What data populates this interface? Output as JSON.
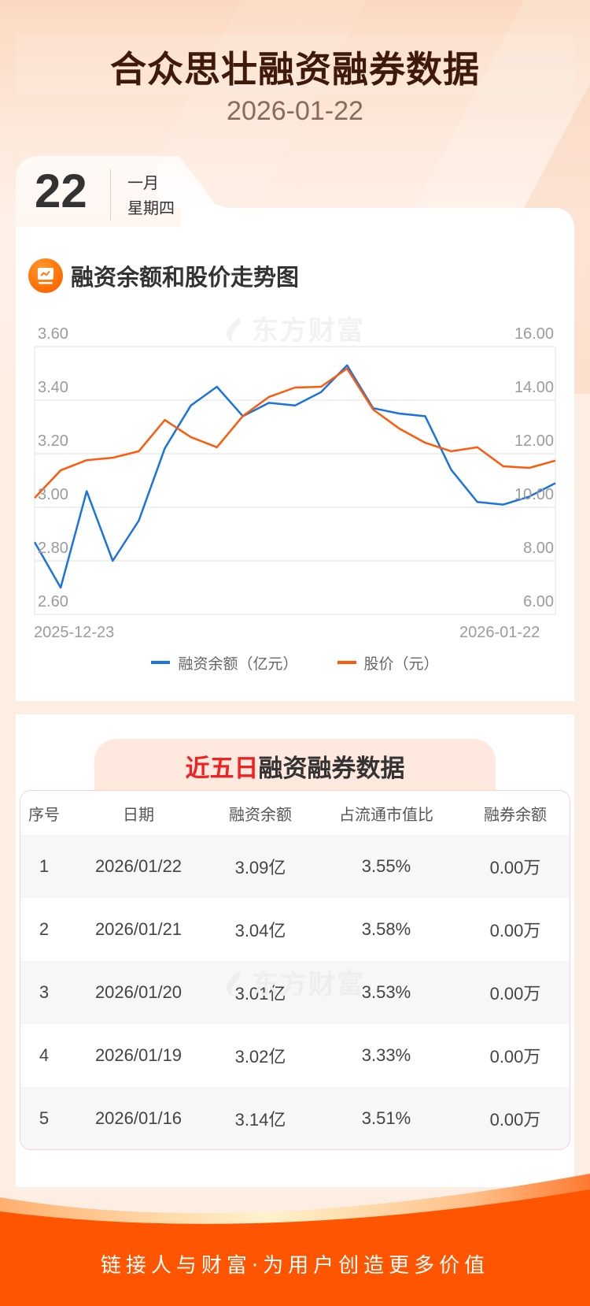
{
  "header": {
    "title": "合众思壮融资融券数据",
    "date": "2026-01-22"
  },
  "date_card": {
    "day": "22",
    "month": "一月",
    "weekday": "星期四"
  },
  "chart_section": {
    "title": "融资余额和股价走势图",
    "icon": "chart-monitor-icon",
    "watermark": "东方财富"
  },
  "chart_data": {
    "type": "line",
    "title": "融资余额和股价走势图",
    "xlabel": "",
    "x_tick_labels": [
      "2025-12-23",
      "2026-01-22"
    ],
    "x_range": [
      "2025-12-23",
      "2026-01-22"
    ],
    "grid": true,
    "legend_position": "bottom",
    "left_axis": {
      "label": "融资余额（亿元）",
      "ticks": [
        "3.60",
        "3.40",
        "3.20",
        "3.00",
        "2.80",
        "2.60"
      ],
      "ylim": [
        2.6,
        3.6
      ]
    },
    "right_axis": {
      "label": "股价（元）",
      "ticks": [
        "16.00",
        "14.00",
        "12.00",
        "10.00",
        "8.00",
        "6.00"
      ],
      "ylim": [
        6,
        16
      ]
    },
    "series": [
      {
        "name": "融资余额（亿元）",
        "axis": "left",
        "color": "#1a73e0",
        "values": [
          2.87,
          2.7,
          3.06,
          2.8,
          2.95,
          3.22,
          3.38,
          3.45,
          3.34,
          3.39,
          3.38,
          3.43,
          3.53,
          3.37,
          3.35,
          3.34,
          3.14,
          3.02,
          3.01,
          3.04,
          3.09
        ]
      },
      {
        "name": "股价（元）",
        "axis": "right",
        "color": "#ff5a0a",
        "values": [
          10.35,
          11.38,
          11.76,
          11.85,
          12.09,
          13.26,
          12.62,
          12.24,
          13.41,
          14.12,
          14.47,
          14.5,
          15.18,
          13.65,
          12.94,
          12.41,
          12.09,
          12.24,
          11.53,
          11.47,
          11.74
        ]
      }
    ]
  },
  "legend": [
    {
      "label": "融资余额（亿元）",
      "color": "#1a73e0"
    },
    {
      "label": "股价（元）",
      "color": "#ff5a0a"
    }
  ],
  "table_section": {
    "title_highlight": "近五日",
    "title_rest": "融资融券数据",
    "highlight_color": "#ee2222",
    "watermark": "东方财富",
    "columns": [
      "序号",
      "日期",
      "融资余额",
      "占流通市值比",
      "融券余额"
    ],
    "rows": [
      [
        "1",
        "2026/01/22",
        "3.09亿",
        "3.55%",
        "0.00万"
      ],
      [
        "2",
        "2026/01/21",
        "3.04亿",
        "3.58%",
        "0.00万"
      ],
      [
        "3",
        "2026/01/20",
        "3.01亿",
        "3.53%",
        "0.00万"
      ],
      [
        "4",
        "2026/01/19",
        "3.02亿",
        "3.33%",
        "0.00万"
      ],
      [
        "5",
        "2026/01/16",
        "3.14亿",
        "3.51%",
        "0.00万"
      ]
    ]
  },
  "footer": {
    "slogan": "链接人与财富·为用户创造更多价值",
    "color": "#ff5500"
  }
}
